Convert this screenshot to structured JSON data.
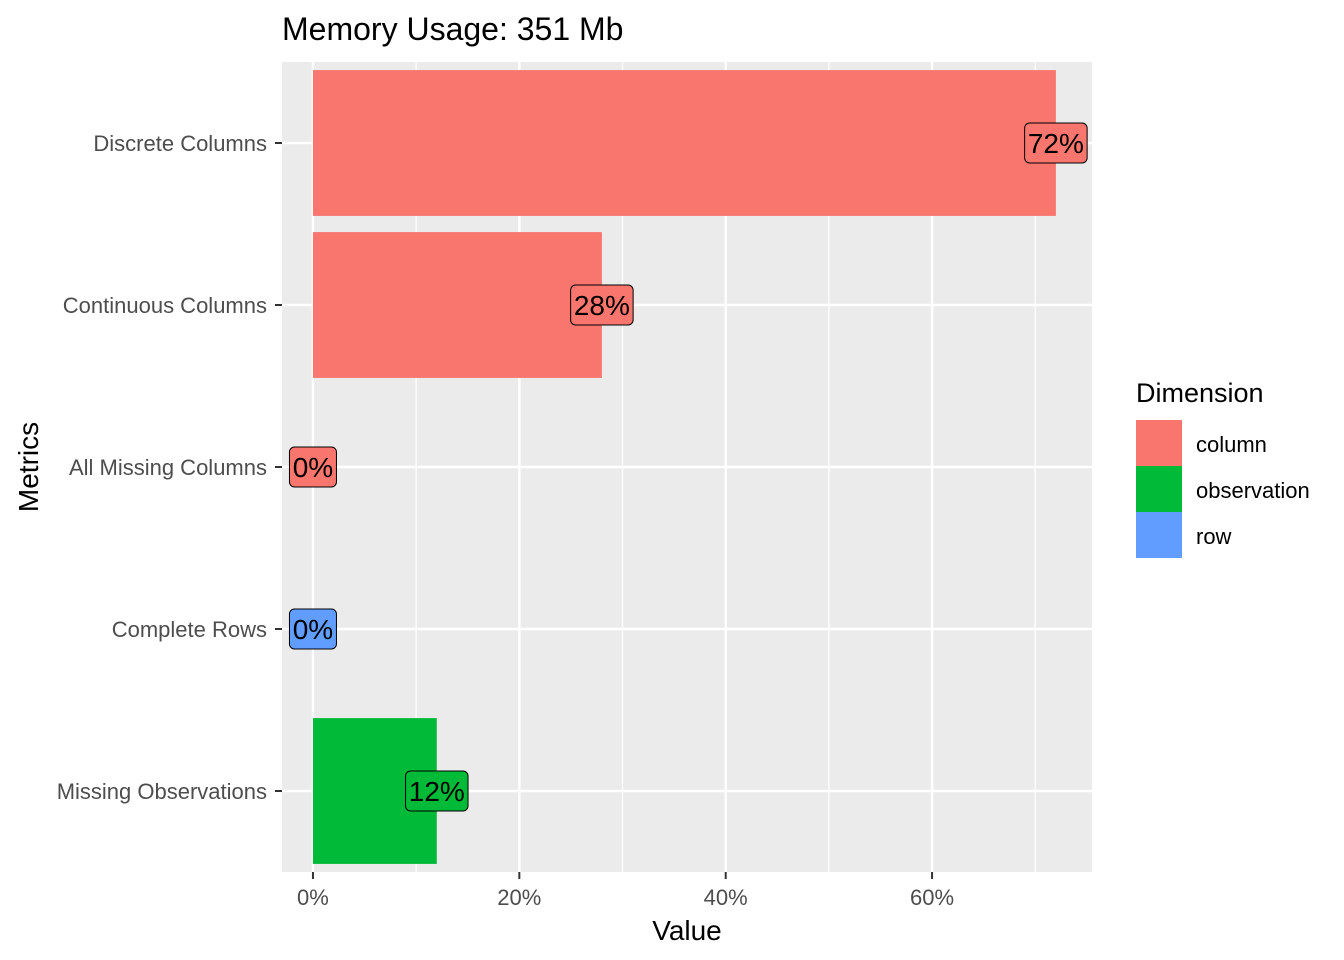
{
  "chart_data": {
    "type": "bar",
    "orientation": "horizontal",
    "title": "Memory Usage: 351 Mb",
    "xlabel": "Value",
    "ylabel": "Metrics",
    "xlim": [
      -0.03,
      0.755
    ],
    "x_ticks": [
      0,
      0.2,
      0.4,
      0.6
    ],
    "x_tick_labels": [
      "0%",
      "20%",
      "40%",
      "60%"
    ],
    "grid": true,
    "legend": {
      "title": "Dimension",
      "placement": "right",
      "entries": [
        {
          "name": "column",
          "color": "#F8766D"
        },
        {
          "name": "observation",
          "color": "#00BA38"
        },
        {
          "name": "row",
          "color": "#619CFF"
        }
      ]
    },
    "categories": [
      "Discrete Columns",
      "Continuous Columns",
      "All Missing Columns",
      "Complete Rows",
      "Missing Observations"
    ],
    "values": [
      0.72,
      0.28,
      0,
      0,
      0.12
    ],
    "dimension": [
      "column",
      "column",
      "column",
      "row",
      "observation"
    ],
    "data_labels": [
      "72%",
      "28%",
      "0%",
      "0%",
      "12%"
    ]
  },
  "colors": {
    "panel": "#EBEBEB",
    "grid_major": "#FFFFFF",
    "axis_text": "#4D4D4D",
    "text": "#000000"
  }
}
